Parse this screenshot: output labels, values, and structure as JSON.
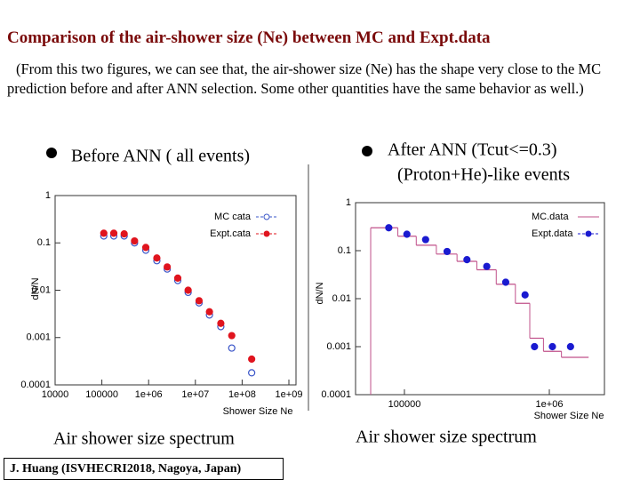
{
  "slide": {
    "title": "Comparison of the air-shower size (Ne) between MC and Expt.data",
    "note": "(From this two figures, we can see that, the air-shower size (Ne) has the shape very close to the MC prediction before and after ANN selection. Some other quantities have the same behavior as well.)",
    "left_heading": "Before ANN ( all events)",
    "right_heading": [
      "After ANN (Tcut<=0.3)",
      "(Proton+He)-like events"
    ],
    "left_caption": "Air shower size spectrum",
    "right_caption": "Air shower size spectrum",
    "footer": "J. Huang (ISVHECRI2018, Nagoya, Japan)"
  },
  "chart_data": [
    {
      "type": "scatter",
      "xlabel": "Shower Size Ne",
      "ylabel": "dN/N",
      "xlog": true,
      "ylog": true,
      "xlim": [
        10000,
        1000000000
      ],
      "ylim": [
        0.0001,
        1
      ],
      "xticks": [
        10000,
        100000,
        {
          "value": 1000000,
          "label": "1e+06"
        },
        {
          "value": 10000000,
          "label": "1e+07"
        },
        {
          "value": 100000000,
          "label": "1e+08"
        },
        {
          "value": 1000000000,
          "label": "1e+09"
        }
      ],
      "yticks": [
        0.0001,
        0.001,
        0.01,
        0.1,
        1
      ],
      "x": [
        110000,
        180000,
        300000,
        500000,
        870000,
        1500000,
        2500000,
        4200000,
        7000000,
        12000000,
        20000000,
        35000000,
        60000000,
        160000000
      ],
      "series": [
        {
          "name": "MC cata",
          "color": "#3a55c8",
          "marker": "open",
          "values": [
            0.14,
            0.14,
            0.14,
            0.1,
            0.07,
            0.042,
            0.028,
            0.016,
            0.009,
            0.0054,
            0.003,
            0.0017,
            0.0006,
            0.00018
          ]
        },
        {
          "name": "Expt.cata",
          "color": "#e0141e",
          "marker": "filled",
          "values": [
            0.16,
            0.16,
            0.155,
            0.11,
            0.08,
            0.048,
            0.031,
            0.018,
            0.01,
            0.006,
            0.0035,
            0.002,
            0.0011,
            0.00035
          ]
        }
      ]
    },
    {
      "type": "scatter",
      "xlabel": "Shower Size Ne",
      "ylabel": "dN/N",
      "xlog": true,
      "ylog": true,
      "xlim": [
        46000,
        2400000
      ],
      "ylim": [
        0.0001,
        1
      ],
      "xticks": [
        100000,
        {
          "value": 1000000,
          "label": "1e+06"
        }
      ],
      "yticks": [
        0.0001,
        0.001,
        0.01,
        0.1,
        1
      ],
      "x": [
        78000,
        104000,
        140000,
        197000,
        270000,
        370000,
        500000,
        680000,
        790000,
        1050000,
        1400000
      ],
      "series": [
        {
          "name": "MC.data",
          "color": "#c0508a",
          "marker": "step",
          "values": [
            0.3,
            0.2,
            0.13,
            0.085,
            0.06,
            0.04,
            0.02,
            0.008,
            0.0015,
            0.0008,
            0.0006
          ]
        },
        {
          "name": "Expt.data",
          "color": "#1a1ad0",
          "marker": "filled",
          "values": [
            0.3,
            0.22,
            0.17,
            0.096,
            0.065,
            0.047,
            0.022,
            0.012,
            0.001,
            0.001,
            0.001
          ]
        }
      ]
    }
  ]
}
